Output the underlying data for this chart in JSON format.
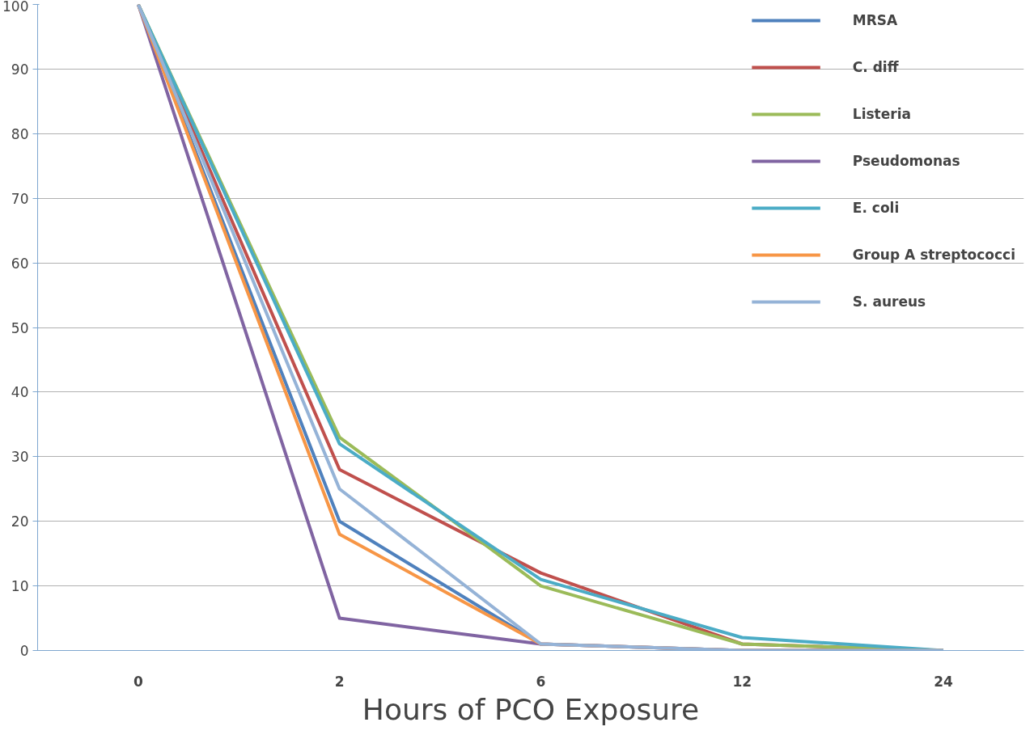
{
  "chart_data": {
    "type": "line",
    "xlabel": "Hours of PCO Exposure",
    "categories": [
      "0",
      "2",
      "6",
      "12",
      "24"
    ],
    "ylim": [
      0,
      100
    ],
    "yticks": [
      0,
      10,
      20,
      30,
      40,
      50,
      60,
      70,
      80,
      90,
      100
    ],
    "grid": "y",
    "legend": "top right",
    "marker": "none",
    "series": [
      {
        "name": "MRSA",
        "color": "#4f81bd",
        "values": [
          100,
          20,
          1,
          0,
          0
        ]
      },
      {
        "name": "C. diff",
        "color": "#c0504d",
        "values": [
          100,
          28,
          12,
          1,
          0
        ]
      },
      {
        "name": "Listeria",
        "color": "#9bbb59",
        "values": [
          100,
          33,
          10,
          1,
          0
        ]
      },
      {
        "name": "Pseudomonas",
        "color": "#8064a2",
        "values": [
          100,
          5,
          1,
          0,
          0
        ]
      },
      {
        "name": "E. coli",
        "color": "#4bacc6",
        "values": [
          100,
          32,
          11,
          2,
          0
        ]
      },
      {
        "name": "Group A streptococci",
        "color": "#f79646",
        "values": [
          100,
          18,
          1,
          0,
          0
        ]
      },
      {
        "name": "S. aureus",
        "color": "#95b3d7",
        "values": [
          100,
          25,
          1,
          0,
          0
        ]
      }
    ]
  }
}
